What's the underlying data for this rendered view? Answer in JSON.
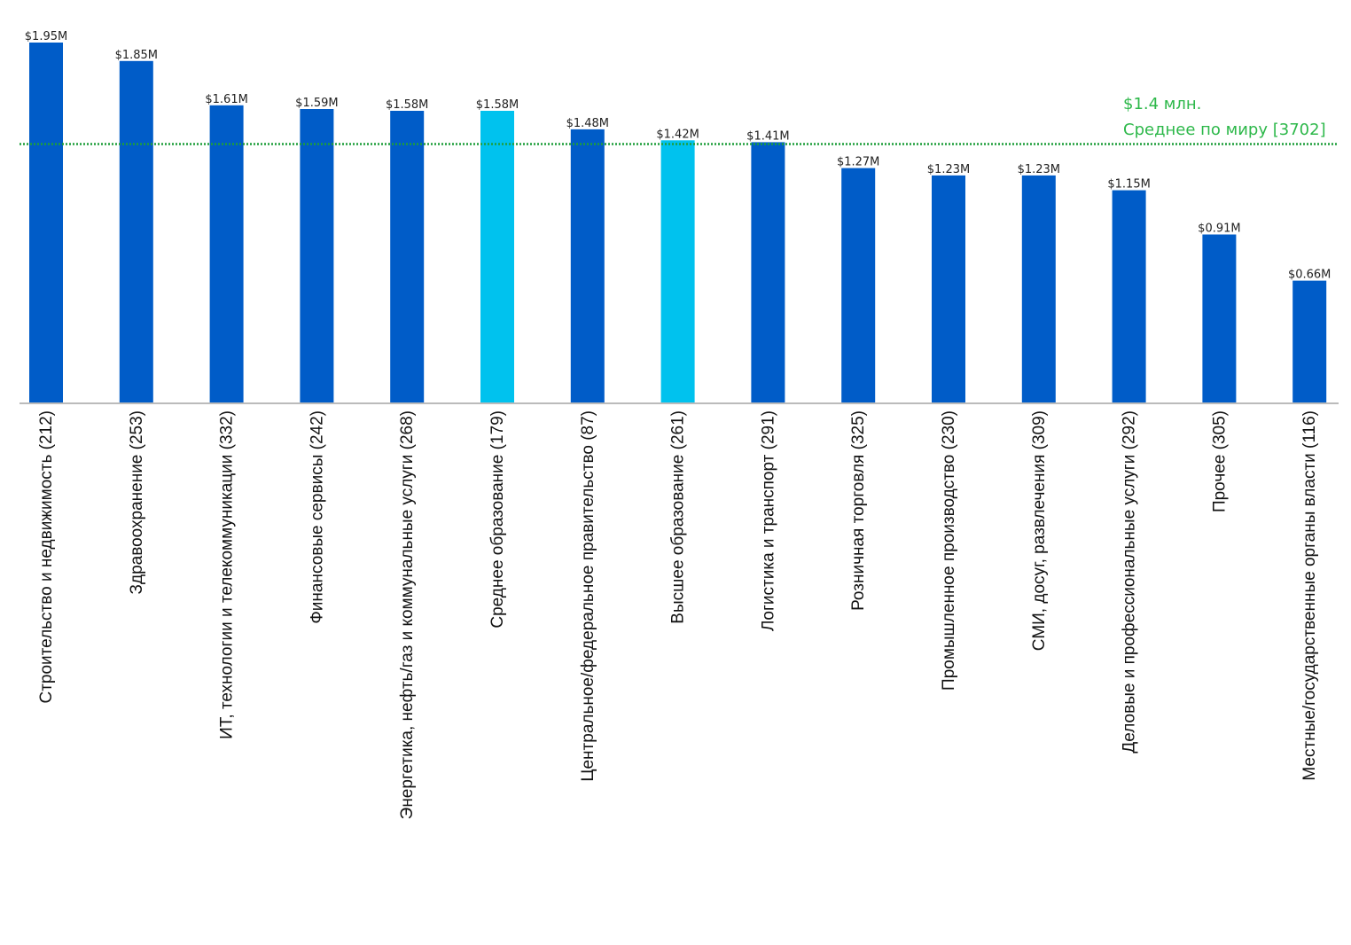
{
  "chart_data": {
    "type": "bar",
    "title": "",
    "xlabel": "",
    "ylabel": "",
    "ylim": [
      0,
      2.0
    ],
    "grid": false,
    "categories": [
      "Строительство и недвижимость (212)",
      "Здравоохранение (253)",
      "ИТ, технологии и телекоммуникации (332)",
      "Финансовые сервисы (242)",
      "Энергетика, нефть/газ и коммунальные услуги (268)",
      "Среднее образование (179)",
      "Центральное/федеральное правительство (87)",
      "Высшее образование (261)",
      "Логистика и транспорт (291)",
      "Розничная торговля (325)",
      "Промышленное производство (230)",
      "СМИ, досуг, развлечения (309)",
      "Деловые и профессиональные услуги (292)",
      "Прочее (305)",
      "Местные/государственные органы власти (116)"
    ],
    "values": [
      1.95,
      1.85,
      1.61,
      1.59,
      1.58,
      1.58,
      1.48,
      1.42,
      1.41,
      1.27,
      1.23,
      1.23,
      1.15,
      0.91,
      0.66
    ],
    "value_labels": [
      "$1.95M",
      "$1.85M",
      "$1.61M",
      "$1.59M",
      "$1.58M",
      "$1.58M",
      "$1.48M",
      "$1.42M",
      "$1.41M",
      "$1.27M",
      "$1.23M",
      "$1.23M",
      "$1.15M",
      "$0.91M",
      "$0.66M"
    ],
    "highlighted": [
      false,
      false,
      false,
      false,
      false,
      true,
      false,
      true,
      false,
      false,
      false,
      false,
      false,
      false,
      false
    ],
    "reference_line": {
      "value": 1.4,
      "label_line1": "$1.4 млн.",
      "label_line2": "Среднее по миру [3702]",
      "style": "dotted"
    }
  },
  "colors": {
    "bar": "#005CC8",
    "highlight": "#00C2EE",
    "average": "#1E9E3A",
    "average_text": "#2DB84A",
    "axis": "#BBBBBB"
  }
}
